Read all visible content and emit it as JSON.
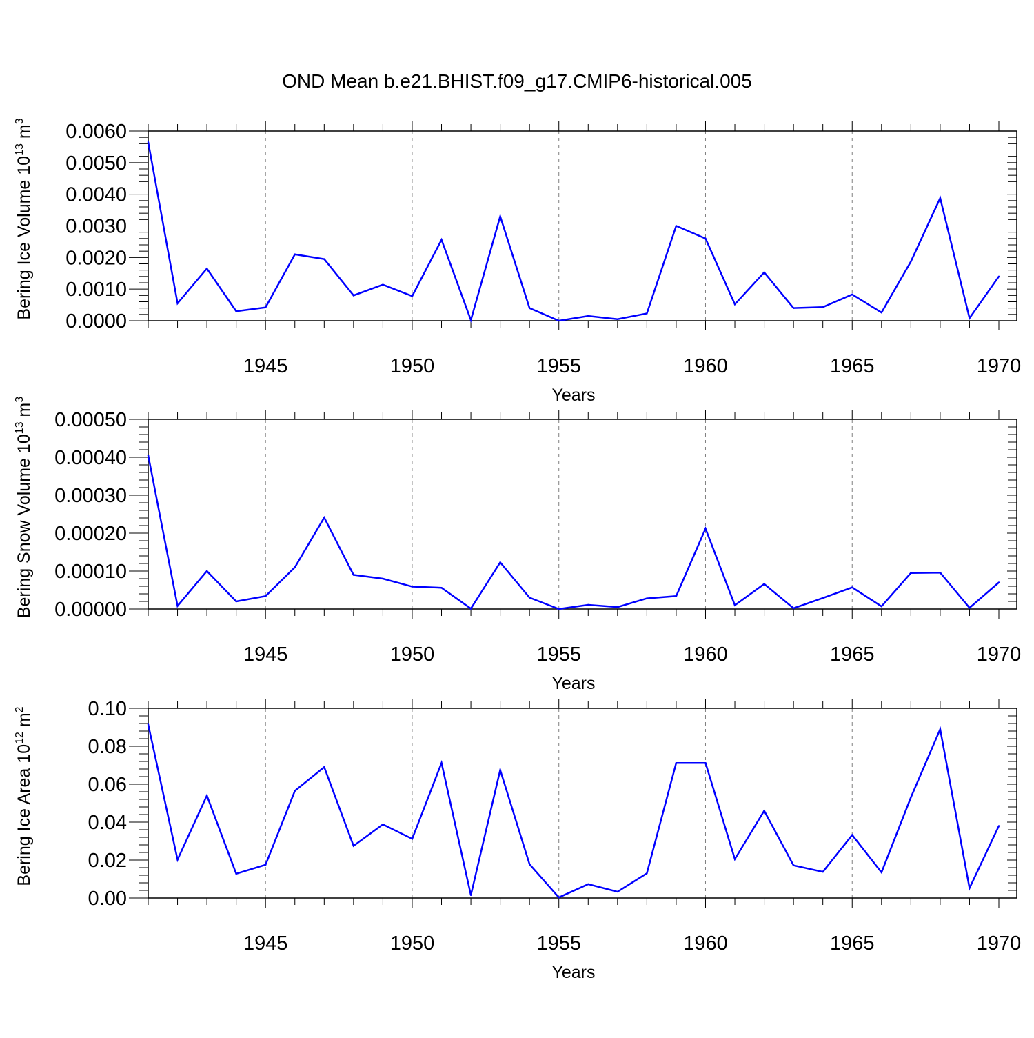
{
  "title": "OND Mean b.e21.BHIST.f09_g17.CMIP6-historical.005",
  "line_color": "#0000ff",
  "grid_color": "#808080",
  "chart_data": [
    {
      "type": "line",
      "title": "",
      "xlabel": "Years",
      "ylabel": {
        "prefix": "Bering Ice Volume 10",
        "exp": "13",
        "unit": " m",
        "unit_exp": "3"
      },
      "xlim": [
        1941,
        1970
      ],
      "ylim": [
        0,
        0.006
      ],
      "x_ticks": [
        "1945",
        "1950",
        "1955",
        "1960",
        "1965",
        "1970"
      ],
      "y_ticks": [
        "0.0000",
        "0.0010",
        "0.0020",
        "0.0030",
        "0.0040",
        "0.0050",
        "0.0060"
      ],
      "x": [
        1941,
        1942,
        1943,
        1944,
        1945,
        1946,
        1947,
        1948,
        1949,
        1950,
        1951,
        1952,
        1953,
        1954,
        1955,
        1956,
        1957,
        1958,
        1959,
        1960,
        1961,
        1962,
        1963,
        1964,
        1965,
        1966,
        1967,
        1968,
        1969,
        1970
      ],
      "series": [
        {
          "name": "Bering Ice Volume",
          "values": [
            0.00565,
            0.00055,
            0.00165,
            0.0003,
            0.00042,
            0.0021,
            0.00195,
            0.0008,
            0.00114,
            0.00078,
            0.00256,
            2e-05,
            0.0033,
            0.0004,
            0.0,
            0.00015,
            5e-05,
            0.00023,
            0.003,
            0.0026,
            0.00052,
            0.00153,
            0.0004,
            0.00043,
            0.00083,
            0.00026,
            0.00187,
            0.00388,
            8e-05,
            0.0014
          ]
        }
      ]
    },
    {
      "type": "line",
      "title": "",
      "xlabel": "Years",
      "ylabel": {
        "prefix": "Bering Snow Volume 10",
        "exp": "13",
        "unit": " m",
        "unit_exp": "3"
      },
      "xlim": [
        1941,
        1970
      ],
      "ylim": [
        0,
        0.0005
      ],
      "x_ticks": [
        "1945",
        "1950",
        "1955",
        "1960",
        "1965",
        "1970"
      ],
      "y_ticks": [
        "0.00000",
        "0.00010",
        "0.00020",
        "0.00030",
        "0.00040",
        "0.00050"
      ],
      "x": [
        1941,
        1942,
        1943,
        1944,
        1945,
        1946,
        1947,
        1948,
        1949,
        1950,
        1951,
        1952,
        1953,
        1954,
        1955,
        1956,
        1957,
        1958,
        1959,
        1960,
        1961,
        1962,
        1963,
        1964,
        1965,
        1966,
        1967,
        1968,
        1969,
        1970
      ],
      "series": [
        {
          "name": "Bering Snow Volume",
          "values": [
            0.000405,
            8e-06,
            0.0001,
            2e-05,
            3.4e-05,
            0.00011,
            0.000241,
            9e-05,
            8e-05,
            5.9e-05,
            5.6e-05,
            1e-06,
            0.000123,
            3e-05,
            0.0,
            1.1e-05,
            5e-06,
            2.8e-05,
            3.4e-05,
            0.000212,
            1e-05,
            6.6e-05,
            2e-06,
            2.9e-05,
            5.7e-05,
            7e-06,
            9.5e-05,
            9.6e-05,
            3e-06,
            7e-05
          ]
        }
      ]
    },
    {
      "type": "line",
      "title": "",
      "xlabel": "Years",
      "ylabel": {
        "prefix": "Bering Ice Area 10",
        "exp": "12",
        "unit": " m",
        "unit_exp": "2"
      },
      "xlim": [
        1941,
        1970
      ],
      "ylim": [
        0,
        0.1
      ],
      "x_ticks": [
        "1945",
        "1950",
        "1955",
        "1960",
        "1965",
        "1970"
      ],
      "y_ticks": [
        "0.00",
        "0.02",
        "0.04",
        "0.06",
        "0.08",
        "0.10"
      ],
      "x": [
        1941,
        1942,
        1943,
        1944,
        1945,
        1946,
        1947,
        1948,
        1949,
        1950,
        1951,
        1952,
        1953,
        1954,
        1955,
        1956,
        1957,
        1958,
        1959,
        1960,
        1961,
        1962,
        1963,
        1964,
        1965,
        1966,
        1967,
        1968,
        1969,
        1970
      ],
      "series": [
        {
          "name": "Bering Ice Area",
          "values": [
            0.0915,
            0.0202,
            0.054,
            0.0128,
            0.0175,
            0.0565,
            0.069,
            0.0275,
            0.0388,
            0.0312,
            0.0712,
            0.0015,
            0.0675,
            0.0178,
            0.0003,
            0.0073,
            0.0033,
            0.013,
            0.0712,
            0.0712,
            0.0205,
            0.046,
            0.0172,
            0.0138,
            0.0332,
            0.0135,
            0.053,
            0.089,
            0.0052,
            0.038
          ]
        }
      ]
    }
  ]
}
